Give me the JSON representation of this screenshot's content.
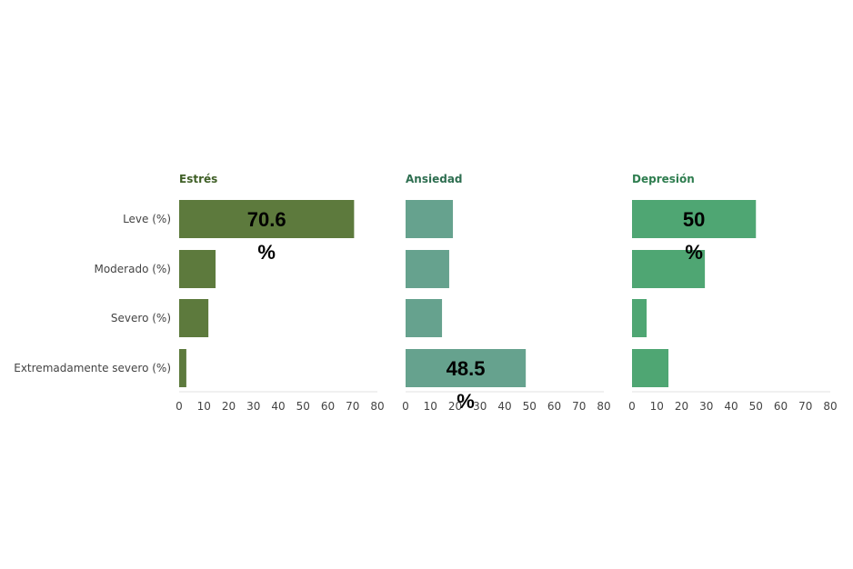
{
  "chart_data": {
    "type": "bar",
    "orientation": "horizontal",
    "categories": [
      "Leve (%)",
      "Moderado (%)",
      "Severo (%)",
      "Extremadamente severo (%)"
    ],
    "xlim": [
      0,
      80
    ],
    "x_ticks": [
      "0",
      "10",
      "20",
      "30",
      "40",
      "50",
      "60",
      "70",
      "80"
    ],
    "grid": false,
    "panels": [
      {
        "title": "Estrés",
        "title_color": "#3f5f26",
        "bar_color": "#5d7a3d",
        "values": [
          70.6,
          14.7,
          11.8,
          2.9
        ],
        "annotation": {
          "category_index": 0,
          "value": "70.6",
          "unit": "%"
        }
      },
      {
        "title": "Ansiedad",
        "title_color": "#2e6e50",
        "bar_color": "#66a28e",
        "values": [
          19.1,
          17.6,
          14.7,
          48.5
        ],
        "annotation": {
          "category_index": 3,
          "value": "48.5",
          "unit": "%"
        }
      },
      {
        "title": "Depresión",
        "title_color": "#2e7d4f",
        "bar_color": "#4fa673",
        "values": [
          50,
          29.4,
          5.9,
          14.7
        ],
        "annotation": {
          "category_index": 0,
          "value": "50",
          "unit": "%"
        }
      }
    ]
  }
}
